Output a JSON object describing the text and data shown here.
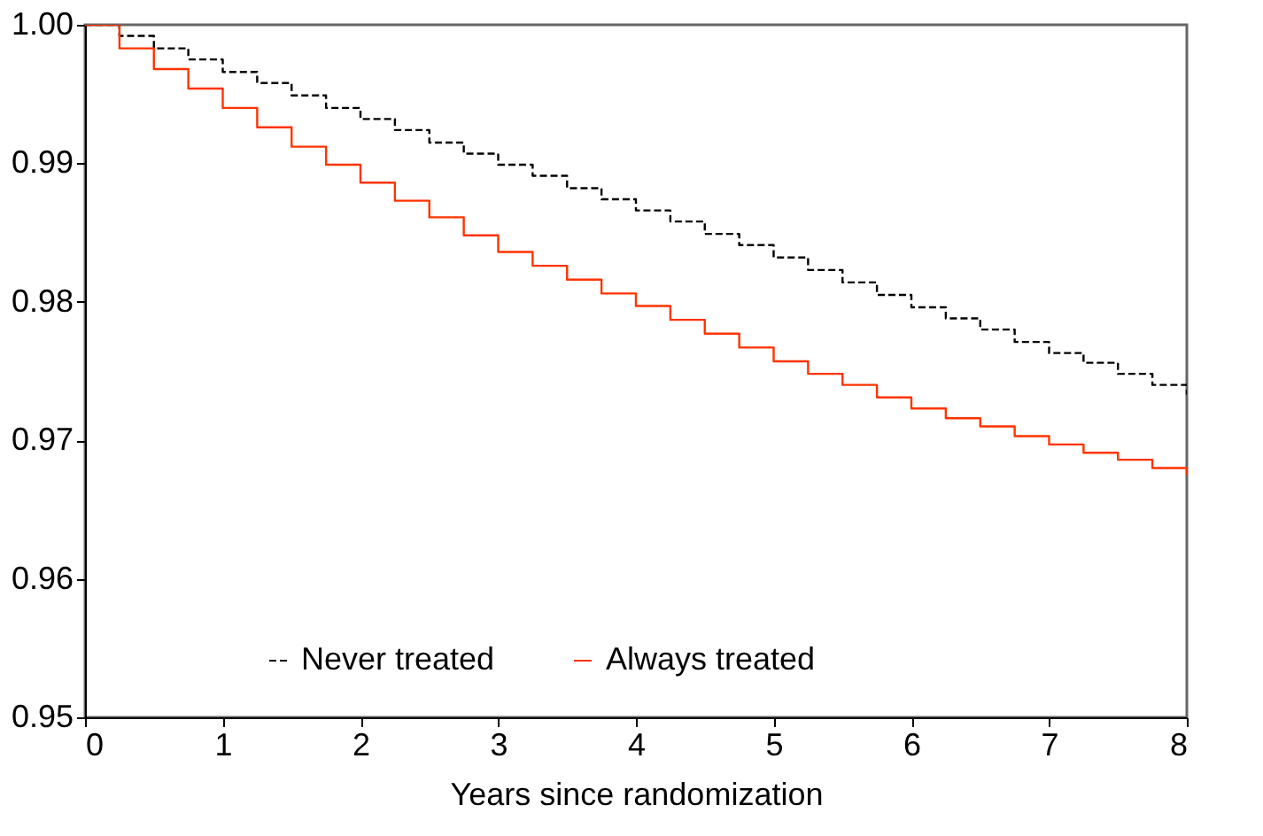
{
  "chart_data": {
    "type": "step",
    "xlabel": "Years since randomization",
    "xlim": [
      0,
      8
    ],
    "xticks": [
      0,
      1,
      2,
      3,
      4,
      5,
      6,
      7,
      8
    ],
    "ylim": [
      0.95,
      1.0
    ],
    "yticks": [
      0.95,
      0.96,
      0.97,
      0.98,
      0.99,
      {
        "value": 1.0,
        "label": "1.00"
      }
    ],
    "grid": false,
    "legend": "bottom",
    "series": [
      {
        "name": "Never treated",
        "color": "#000000",
        "line_style": "dashed",
        "x": [
          0,
          0.25,
          0.5,
          0.75,
          1,
          1.25,
          1.5,
          1.75,
          2,
          2.25,
          2.5,
          2.75,
          3,
          3.25,
          3.5,
          3.75,
          4,
          4.25,
          4.5,
          4.75,
          5,
          5.25,
          5.5,
          5.75,
          6,
          6.25,
          6.5,
          6.75,
          7,
          7.25,
          7.5,
          7.75,
          8
        ],
        "values": [
          1.0,
          0.9992,
          0.9983,
          0.9975,
          0.9966,
          0.9958,
          0.9949,
          0.994,
          0.9932,
          0.9924,
          0.9915,
          0.9907,
          0.9899,
          0.9891,
          0.9882,
          0.9874,
          0.9866,
          0.9858,
          0.9849,
          0.9841,
          0.9832,
          0.9823,
          0.9814,
          0.9805,
          0.9796,
          0.9788,
          0.978,
          0.9771,
          0.9763,
          0.9756,
          0.9748,
          0.974,
          0.9733
        ]
      },
      {
        "name": "Always treated",
        "color": "#ff3300",
        "line_style": "solid",
        "x": [
          0,
          0.25,
          0.5,
          0.75,
          1,
          1.25,
          1.5,
          1.75,
          2,
          2.25,
          2.5,
          2.75,
          3,
          3.25,
          3.5,
          3.75,
          4,
          4.25,
          4.5,
          4.75,
          5,
          5.25,
          5.5,
          5.75,
          6,
          6.25,
          6.5,
          6.75,
          7,
          7.25,
          7.5,
          7.75,
          8
        ],
        "values": [
          1.0,
          0.9983,
          0.9968,
          0.9954,
          0.994,
          0.9926,
          0.9912,
          0.9899,
          0.9886,
          0.9873,
          0.9861,
          0.9848,
          0.9836,
          0.9826,
          0.9816,
          0.9806,
          0.9797,
          0.9787,
          0.9777,
          0.9767,
          0.9757,
          0.9748,
          0.974,
          0.9731,
          0.9723,
          0.9716,
          0.971,
          0.9703,
          0.9697,
          0.9691,
          0.9686,
          0.968,
          0.9675
        ]
      }
    ]
  }
}
